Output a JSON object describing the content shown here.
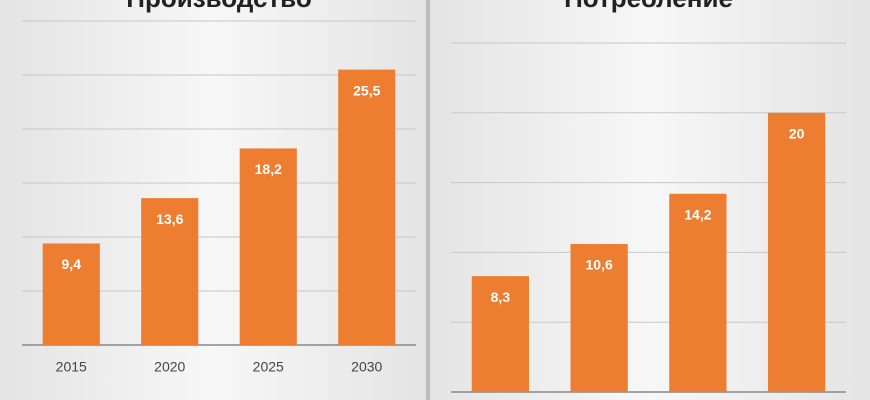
{
  "chart_data": [
    {
      "type": "bar",
      "title": "Производство",
      "categories": [
        "2015",
        "2020",
        "2025",
        "2030"
      ],
      "values": [
        9.4,
        13.6,
        18.2,
        25.5
      ],
      "value_labels": [
        "9,4",
        "13,6",
        "18,2",
        "25,5"
      ],
      "color": "#ed7d31",
      "ylim": [
        0,
        30
      ],
      "yticks": [
        0,
        5,
        10,
        15,
        20,
        25,
        30
      ],
      "grid": true
    },
    {
      "type": "bar",
      "title": "Потребление",
      "categories": [
        null,
        null,
        null,
        null
      ],
      "values": [
        8.3,
        10.6,
        14.2,
        20
      ],
      "value_labels": [
        "8,3",
        "10,6",
        "14,2",
        "20"
      ],
      "color": "#ed7d31",
      "ylim": [
        0,
        25
      ],
      "yticks": [
        0,
        5,
        10,
        15,
        20,
        25
      ],
      "grid": true
    }
  ]
}
